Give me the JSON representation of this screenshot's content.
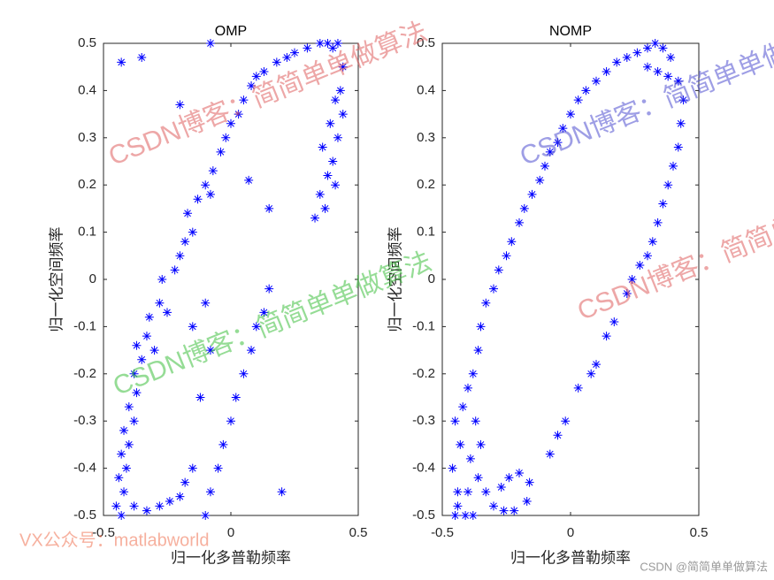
{
  "chart_data": [
    {
      "type": "scatter",
      "title": "OMP",
      "xlabel": "归一化多普勒频率",
      "ylabel": "归一化空间频率",
      "color": "#0000ff",
      "marker": "*",
      "xlim": [
        -0.5,
        0.5
      ],
      "ylim": [
        -0.5,
        0.5
      ],
      "xticks": [
        -0.5,
        0,
        0.5
      ],
      "yticks": [
        -0.5,
        -0.4,
        -0.3,
        -0.2,
        -0.1,
        0,
        0.1,
        0.2,
        0.3,
        0.4,
        0.5
      ],
      "x": [
        -0.43,
        -0.45,
        -0.42,
        -0.44,
        -0.41,
        -0.43,
        -0.4,
        -0.42,
        -0.38,
        -0.4,
        -0.37,
        -0.38,
        -0.35,
        -0.37,
        -0.33,
        -0.3,
        -0.32,
        -0.28,
        -0.25,
        -0.27,
        -0.22,
        -0.2,
        -0.18,
        -0.15,
        -0.17,
        -0.13,
        -0.1,
        -0.08,
        -0.07,
        -0.04,
        -0.02,
        0,
        0.03,
        0.05,
        0.08,
        0.1,
        0.13,
        0.18,
        0.22,
        0.25,
        0.3,
        0.35,
        0.38,
        0.4,
        0.42,
        0.44,
        0.43,
        0.44,
        0.42,
        0.4,
        0.41,
        0.38,
        0.37,
        0.35,
        0.33,
        0.36,
        0.39,
        0.41,
        -0.38,
        -0.33,
        -0.28,
        -0.24,
        -0.2,
        -0.18,
        -0.15,
        -0.1,
        -0.08,
        -0.05,
        -0.03,
        0,
        0.02,
        0.05,
        0.08,
        0.1,
        0.13,
        0.15,
        -0.12,
        -0.15,
        -0.1,
        -0.08,
        -0.08,
        -0.35,
        -0.43,
        0.2,
        -0.2,
        0.15,
        0.07
      ],
      "values": [
        -0.5,
        -0.48,
        -0.45,
        -0.42,
        -0.4,
        -0.37,
        -0.35,
        -0.32,
        -0.3,
        -0.27,
        -0.24,
        -0.2,
        -0.17,
        -0.14,
        -0.12,
        -0.15,
        -0.08,
        -0.05,
        -0.07,
        0,
        0.02,
        0.05,
        0.08,
        0.1,
        0.14,
        0.17,
        0.2,
        0.18,
        0.23,
        0.27,
        0.3,
        0.33,
        0.35,
        0.38,
        0.41,
        0.43,
        0.44,
        0.46,
        0.47,
        0.48,
        0.49,
        0.5,
        0.5,
        0.49,
        0.5,
        0.45,
        0.4,
        0.35,
        0.3,
        0.25,
        0.2,
        0.22,
        0.15,
        0.18,
        0.13,
        0.28,
        0.33,
        0.38,
        -0.48,
        -0.49,
        -0.48,
        -0.47,
        -0.46,
        -0.43,
        -0.4,
        -0.5,
        -0.45,
        -0.4,
        -0.35,
        -0.3,
        -0.25,
        -0.2,
        -0.15,
        -0.1,
        -0.07,
        -0.02,
        -0.25,
        -0.1,
        -0.05,
        -0.15,
        0.5,
        0.47,
        0.46,
        -0.45,
        0.37,
        0.15,
        0.21
      ]
    },
    {
      "type": "scatter",
      "title": "NOMP",
      "xlabel": "归一化多普勒频率",
      "ylabel": "归一化空间频率",
      "color": "#0000ff",
      "marker": "*",
      "xlim": [
        -0.5,
        0.5
      ],
      "ylim": [
        -0.5,
        0.5
      ],
      "xticks": [
        -0.5,
        0,
        0.5
      ],
      "yticks": [
        -0.5,
        -0.4,
        -0.3,
        -0.2,
        -0.1,
        0,
        0.1,
        0.2,
        0.3,
        0.4,
        0.5
      ],
      "x": [
        -0.45,
        -0.44,
        -0.46,
        -0.43,
        -0.45,
        -0.42,
        -0.4,
        -0.38,
        -0.4,
        -0.38,
        -0.36,
        -0.35,
        -0.37,
        -0.36,
        -0.35,
        -0.33,
        -0.3,
        -0.28,
        -0.25,
        -0.23,
        -0.2,
        -0.18,
        -0.15,
        -0.12,
        -0.1,
        -0.08,
        -0.05,
        -0.03,
        0,
        0.03,
        0.06,
        0.1,
        0.14,
        0.18,
        0.22,
        0.26,
        0.3,
        0.33,
        0.36,
        0.39,
        0.38,
        0.34,
        0.3,
        0.42,
        0.44,
        0.43,
        0.42,
        0.4,
        0.38,
        0.36,
        0.34,
        0.32,
        0.3,
        0.27,
        0.24,
        0.22,
        0.17,
        0.14,
        0.1,
        0.08,
        0.03,
        -0.02,
        -0.05,
        -0.08,
        -0.3,
        -0.27,
        -0.24,
        -0.2,
        -0.16,
        -0.17,
        -0.22,
        -0.26,
        -0.33,
        -0.44,
        -0.41,
        -0.39
      ],
      "values": [
        -0.5,
        -0.45,
        -0.4,
        -0.35,
        -0.3,
        -0.27,
        -0.23,
        -0.2,
        -0.45,
        -0.5,
        -0.42,
        -0.35,
        -0.3,
        -0.15,
        -0.1,
        -0.05,
        -0.02,
        0.02,
        0.05,
        0.08,
        0.12,
        0.15,
        0.18,
        0.21,
        0.24,
        0.27,
        0.29,
        0.32,
        0.35,
        0.38,
        0.4,
        0.42,
        0.44,
        0.46,
        0.47,
        0.48,
        0.49,
        0.5,
        0.49,
        0.47,
        0.43,
        0.44,
        0.45,
        0.42,
        0.38,
        0.33,
        0.28,
        0.24,
        0.2,
        0.16,
        0.12,
        0.08,
        0.05,
        0.03,
        0,
        -0.03,
        -0.09,
        -0.12,
        -0.18,
        -0.2,
        -0.23,
        -0.3,
        -0.33,
        -0.37,
        -0.48,
        -0.44,
        -0.42,
        -0.41,
        -0.43,
        -0.47,
        -0.49,
        -0.49,
        -0.45,
        -0.48,
        -0.5,
        -0.38
      ]
    }
  ],
  "watermarks": [
    {
      "text": "CSDN博客：简简单单做算法",
      "color": "#e06060"
    },
    {
      "text": "CSDN博客：简简单单做算法",
      "color": "#40c040"
    },
    {
      "text": "CSDN博客：简简单单做算法",
      "color": "#5050d0"
    },
    {
      "text": "CSDN博客：简简单单做算法",
      "color": "#e06060"
    },
    {
      "text": "VX公众号：matlabworld",
      "color": "#f07050"
    }
  ],
  "footer": "CSDN @简简单单做算法"
}
